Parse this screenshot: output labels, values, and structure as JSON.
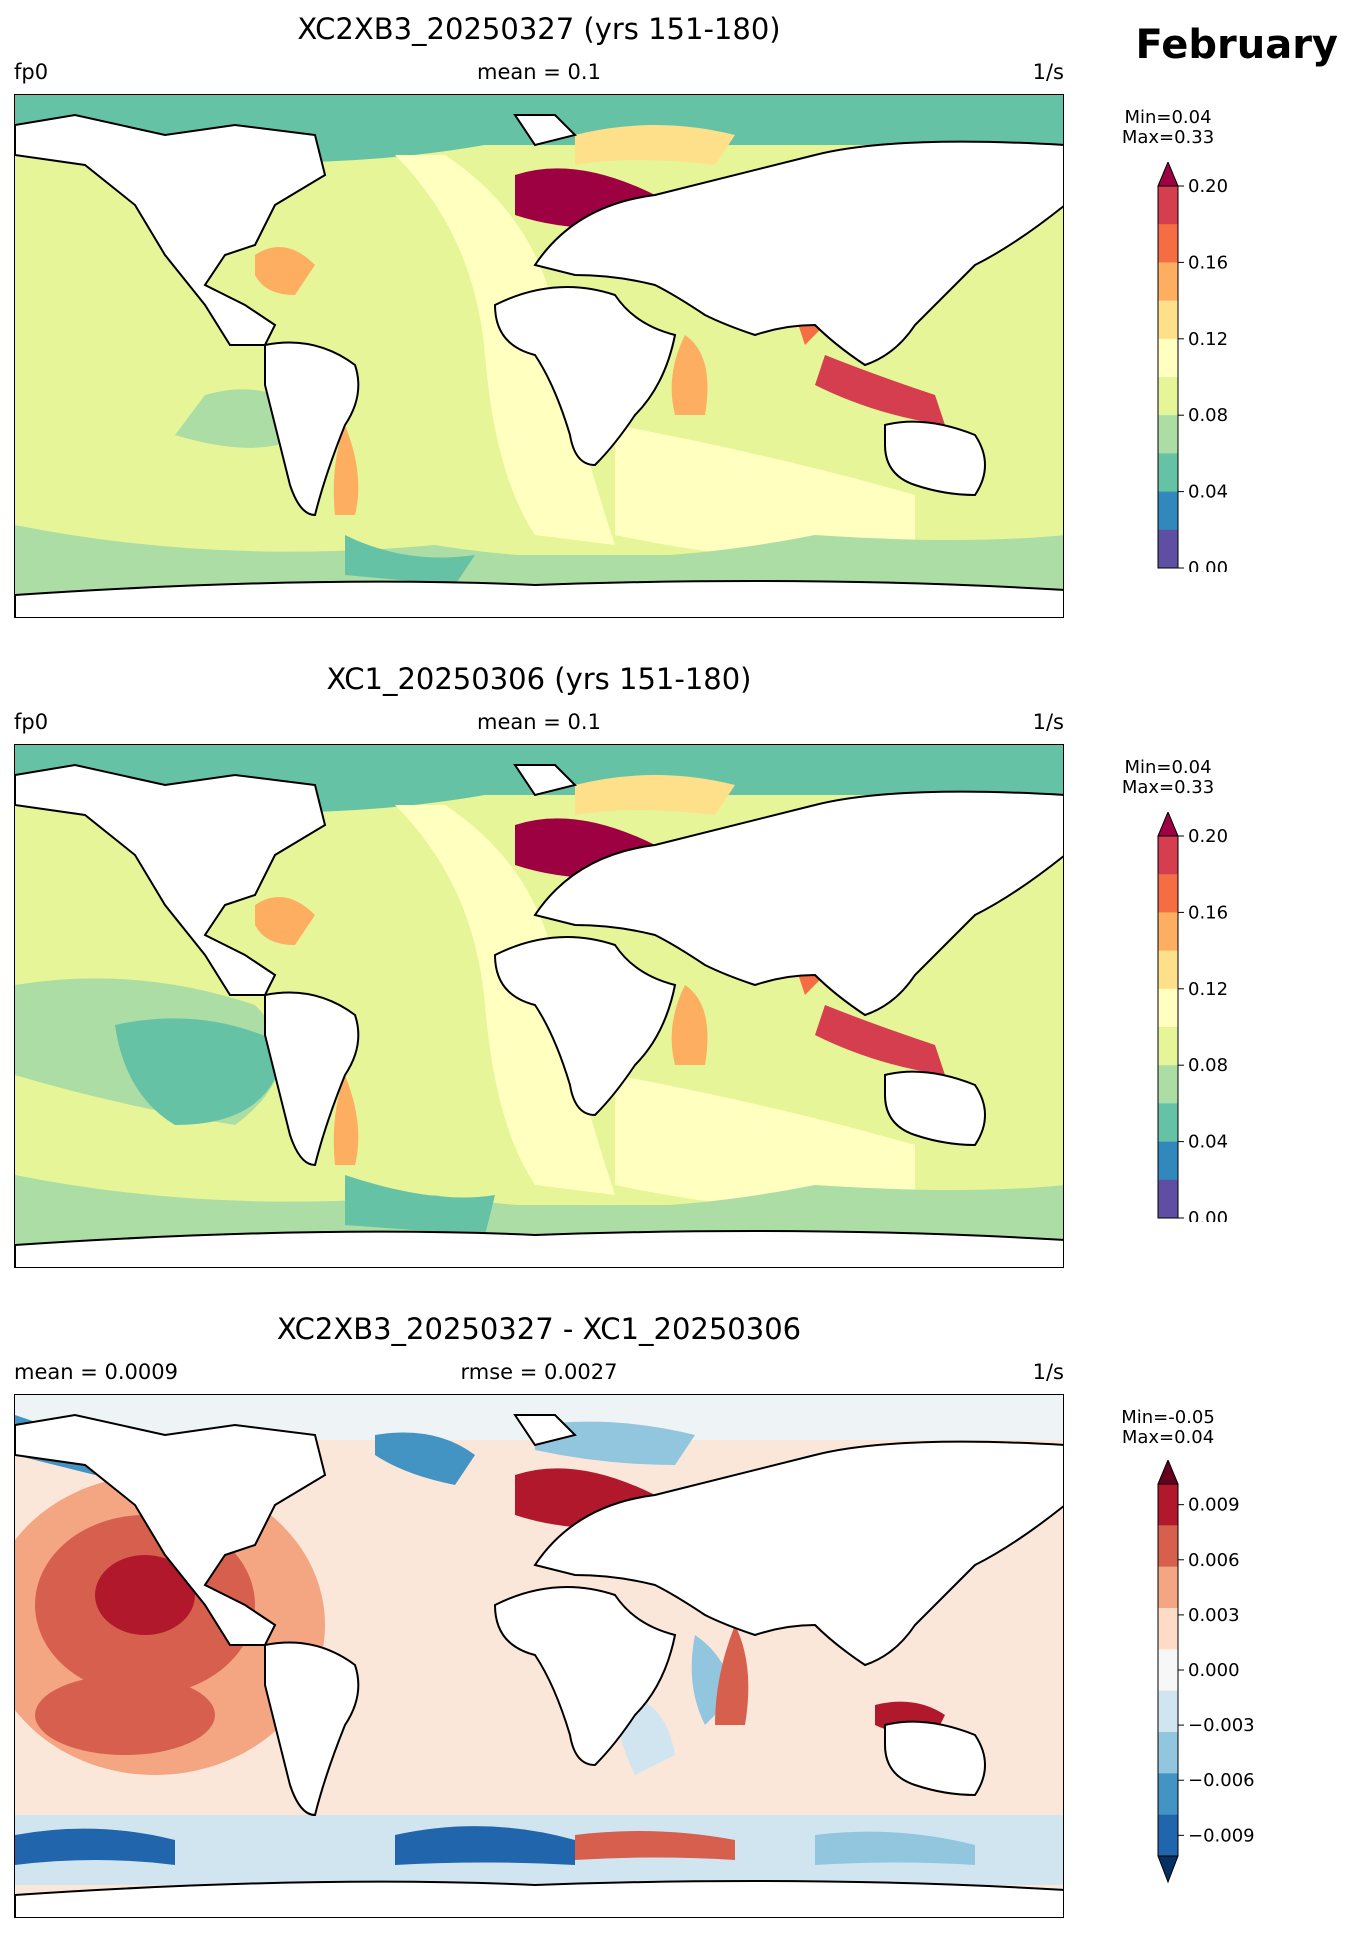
{
  "month": "February",
  "panels": [
    {
      "title": "XC2XB3_20250327 (yrs 151-180)",
      "left_label": "fp0",
      "center_label": "mean = 0.1",
      "right_label": "1/s",
      "min_label": "Min=0.04",
      "max_label": "Max=0.33",
      "colorbar": {
        "ticks": [
          "0.00",
          "0.04",
          "0.08",
          "0.12",
          "0.16",
          "0.20"
        ],
        "colors": [
          "#5e4fa2",
          "#3288bd",
          "#66c2a5",
          "#abdda4",
          "#e6f598",
          "#ffffbf",
          "#fee08b",
          "#fdae61",
          "#f46d43",
          "#d53e4f",
          "#9e0142"
        ],
        "extend": "max"
      }
    },
    {
      "title": "XC1_20250306 (yrs 151-180)",
      "left_label": "fp0",
      "center_label": "mean = 0.1",
      "right_label": "1/s",
      "min_label": "Min=0.04",
      "max_label": "Max=0.33",
      "colorbar": {
        "ticks": [
          "0.00",
          "0.04",
          "0.08",
          "0.12",
          "0.16",
          "0.20"
        ],
        "colors": [
          "#5e4fa2",
          "#3288bd",
          "#66c2a5",
          "#abdda4",
          "#e6f598",
          "#ffffbf",
          "#fee08b",
          "#fdae61",
          "#f46d43",
          "#d53e4f",
          "#9e0142"
        ],
        "extend": "max"
      }
    },
    {
      "title": "XC2XB3_20250327 - XC1_20250306",
      "left_label": "mean = 0.0009",
      "center_label": "rmse = 0.0027",
      "right_label": "1/s",
      "min_label": "Min=-0.05",
      "max_label": "Max=0.04",
      "colorbar": {
        "ticks": [
          "−0.009",
          "−0.006",
          "−0.003",
          "0.000",
          "0.003",
          "0.006",
          "0.009"
        ],
        "colors": [
          "#053061",
          "#2166ac",
          "#4393c3",
          "#92c5de",
          "#d1e5f0",
          "#f7f7f7",
          "#fddbc7",
          "#f4a582",
          "#d6604d",
          "#b2182b",
          "#67001f"
        ],
        "extend": "both"
      }
    }
  ],
  "map_colors": {
    "ocean_base_1": "#e6f598",
    "ocean_base_3": "#fbe6da",
    "land": "#ffffff",
    "coast": "#000000"
  }
}
